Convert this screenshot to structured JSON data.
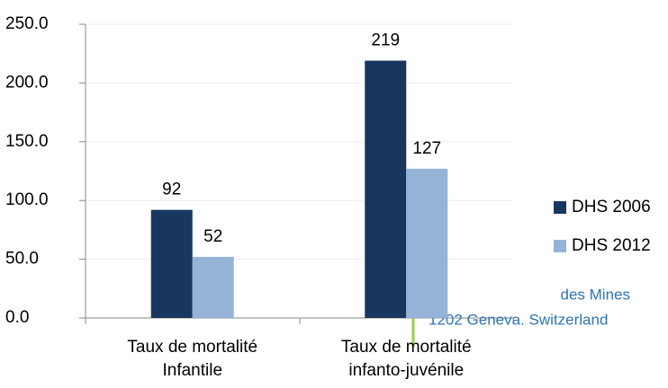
{
  "chart_data": {
    "type": "bar",
    "categories": [
      "Taux de mortalité Infantile",
      "Taux de mortalité infanto-juvénile"
    ],
    "series": [
      {
        "name": "DHS 2006",
        "color": "#17375e",
        "values": [
          92,
          219
        ]
      },
      {
        "name": "DHS 2012",
        "color": "#95b3d7",
        "values": [
          52,
          127
        ]
      }
    ],
    "ylim": [
      0,
      250
    ],
    "yticks": [
      {
        "value": 0,
        "label": "0.0"
      },
      {
        "value": 50,
        "label": "50.0"
      },
      {
        "value": 100,
        "label": "100.0"
      },
      {
        "value": 150,
        "label": "150.0"
      },
      {
        "value": 200,
        "label": "200.0"
      },
      {
        "value": 250,
        "label": "250.0"
      }
    ],
    "grid": true,
    "legend": "right",
    "annotations": [
      "des Mines",
      "1202 Geneva. Switzerland"
    ]
  }
}
